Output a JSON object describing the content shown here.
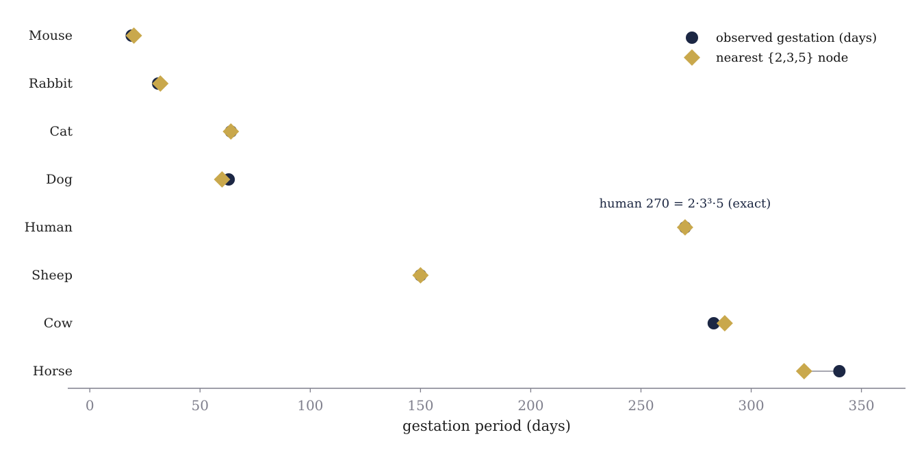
{
  "chart_data": {
    "type": "scatter",
    "subtype": "dumbbell",
    "title": "",
    "xlabel": "gestation period  (days)",
    "ylabel": "",
    "xlim": [
      -10,
      370
    ],
    "xticks": [
      0,
      50,
      100,
      150,
      200,
      250,
      300,
      350
    ],
    "grid": false,
    "legend_position": "top-right",
    "categories": [
      "Mouse",
      "Rabbit",
      "Cat",
      "Dog",
      "Human",
      "Sheep",
      "Cow",
      "Horse"
    ],
    "series": [
      {
        "name": "observed gestation (days)",
        "marker": "circle",
        "color": "#1c2744",
        "values": [
          19,
          31,
          64,
          63,
          270,
          150,
          283,
          340
        ]
      },
      {
        "name": "nearest {2,3,5} node",
        "marker": "diamond",
        "color": "#c9a84c",
        "values": [
          20,
          32,
          64,
          60,
          270,
          150,
          288,
          324
        ]
      }
    ],
    "connector_color": "#8a8a96",
    "annotations": [
      {
        "text": "human 270 = 2·3³·5  (exact)",
        "category": "Human"
      }
    ]
  }
}
